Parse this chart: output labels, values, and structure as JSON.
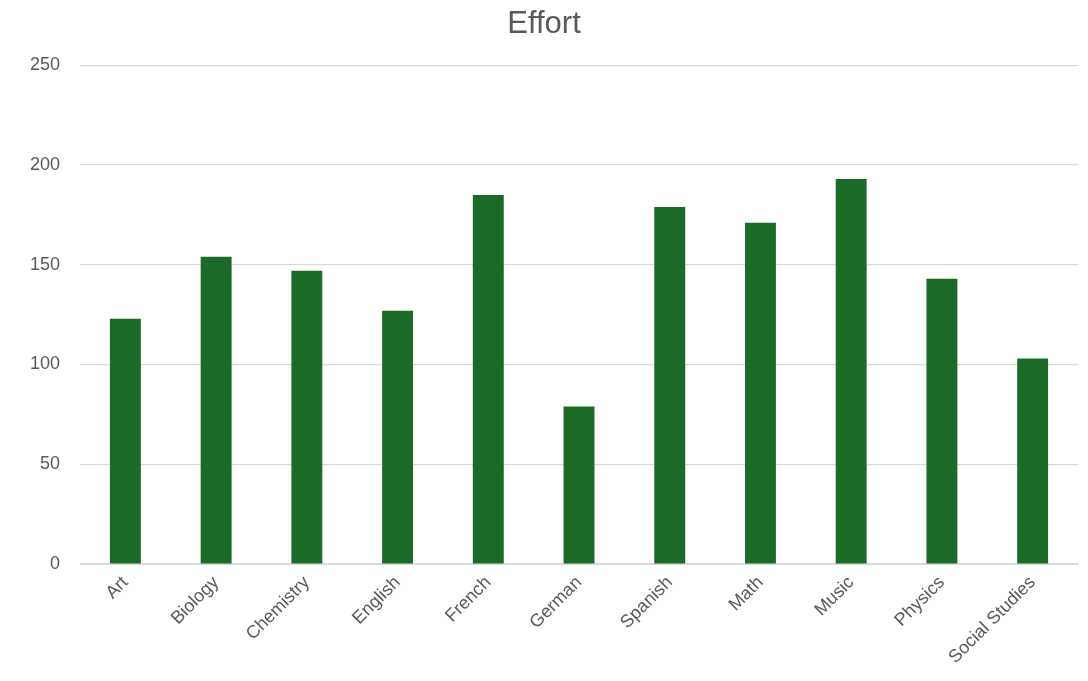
{
  "chart_data": {
    "type": "bar",
    "title": "Effort",
    "categories": [
      "Art",
      "Biology",
      "Chemistry",
      "English",
      "French",
      "German",
      "Spanish",
      "Math",
      "Music",
      "Physics",
      "Social Studies"
    ],
    "values": [
      123,
      154,
      147,
      127,
      185,
      79,
      179,
      171,
      193,
      143,
      103
    ],
    "color": "#1b6b27",
    "ylim": [
      0,
      250
    ],
    "yticks": [
      0,
      50,
      100,
      150,
      200,
      250
    ],
    "grid": "y",
    "legend": false
  }
}
